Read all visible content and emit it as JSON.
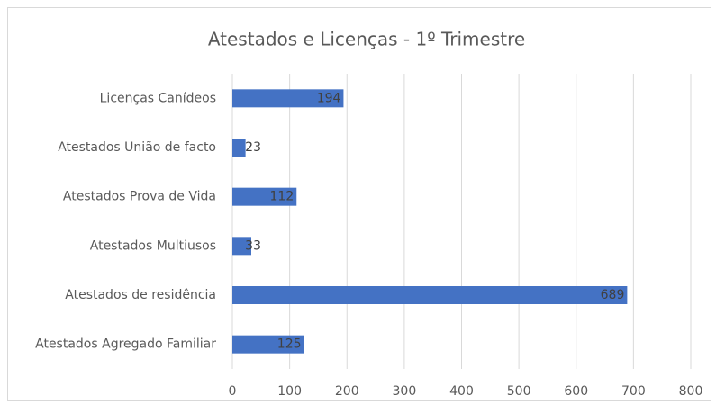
{
  "chart_data": {
    "type": "bar",
    "orientation": "horizontal",
    "title": "Atestados e Licenças - 1º Trimestre",
    "categories": [
      "Licenças Canídeos",
      "Atestados União de facto",
      "Atestados Prova de Vida",
      "Atestados Multiusos",
      "Atestados de residência",
      "Atestados Agregado Familiar"
    ],
    "values": [
      194,
      23,
      112,
      33,
      689,
      125
    ],
    "color": "#4472c4",
    "xlim": [
      0,
      800
    ],
    "xticks": [
      0,
      100,
      200,
      300,
      400,
      500,
      600,
      700,
      800
    ],
    "grid": true
  }
}
